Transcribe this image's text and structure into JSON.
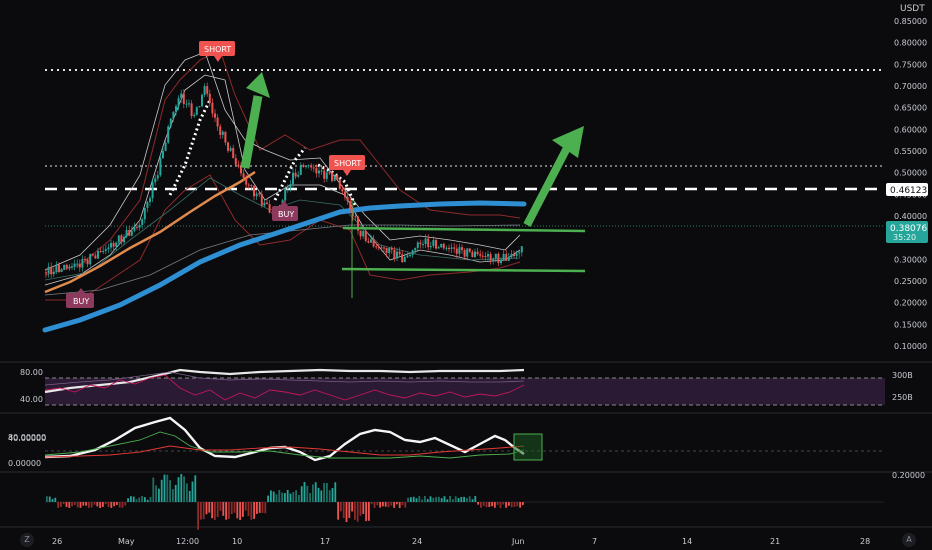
{
  "currency": "USDT",
  "price_axis": {
    "ticks": [
      "0.85000",
      "0.80000",
      "0.75000",
      "0.70000",
      "0.65000",
      "0.60000",
      "0.55000",
      "0.50000",
      "0.45000",
      "0.40000",
      "0.35000",
      "0.30000",
      "0.25000",
      "0.20000",
      "0.15000",
      "0.10000"
    ],
    "tick_values": [
      0.85,
      0.8,
      0.75,
      0.7,
      0.65,
      0.6,
      0.55,
      0.5,
      0.45,
      0.4,
      0.35,
      0.3,
      0.25,
      0.2,
      0.15,
      0.1
    ],
    "dashed_level_label": "0.46123",
    "dashed_level_value": 0.46123,
    "current_price_label": "0.38076",
    "current_price_value": 0.38076,
    "countdown_label": "35:20"
  },
  "labels": {
    "short_1": "SHORT",
    "short_2": "SHORT",
    "buy_1": "BUY",
    "buy_2": "BUY"
  },
  "pane_rsi": {
    "ticks": [
      "80.00",
      "40.00"
    ],
    "right_ticks": [
      "300B",
      "250B"
    ]
  },
  "pane_osc": {
    "ticks": [
      "80.00000",
      "40.00000",
      "0.00000"
    ]
  },
  "pane_hist": {
    "ticks": [
      "0.20000"
    ]
  },
  "time_axis": {
    "labels": [
      "26",
      "May",
      "12:00",
      "10",
      "17",
      "24",
      "Jun",
      "7",
      "14",
      "21",
      "28"
    ]
  },
  "corner_icons": {
    "left": "Z",
    "right": "A"
  },
  "colors": {
    "background": "#0b0b0d",
    "ma_long": "#2f8fd3",
    "ma_short": "#e08a4e",
    "arrow": "#4caf50",
    "short_badge": "#f05350",
    "buy_badge": "#8e3a5e",
    "price_badge": "#26a69a",
    "rsi_band": "#2a1a33"
  },
  "chart_data": {
    "type": "line",
    "x": [
      "26",
      "May",
      "12:00",
      "10",
      "17",
      "24",
      "Jun"
    ],
    "series": [
      {
        "values": [
          0.27,
          0.34,
          0.68,
          0.48,
          0.52,
          0.31,
          0.38
        ]
      }
    ],
    "ylim": [
      0.1,
      0.85
    ]
  }
}
